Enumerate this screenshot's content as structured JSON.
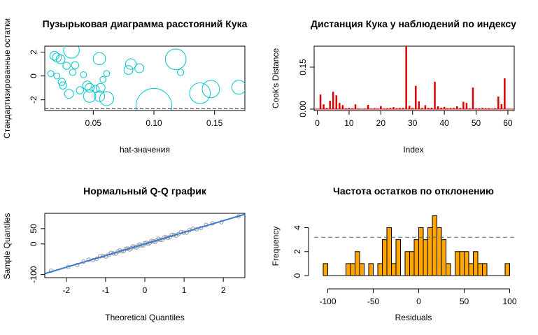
{
  "chart_data": [
    {
      "type": "scatter",
      "title": "Пузырьковая диаграмма расстояний Кука",
      "xlabel": "hat-значения",
      "ylabel": "Стандартизированные остатки",
      "xlim": [
        0.01,
        0.175
      ],
      "ylim": [
        -2.9,
        2.5
      ],
      "xticks": [
        0.05,
        0.1,
        0.15
      ],
      "xtick_labels": [
        "0.05",
        "0.10",
        "0.15"
      ],
      "yticks": [
        -2,
        0,
        2
      ],
      "ytick_labels": [
        "-2",
        "0",
        "2"
      ],
      "hline": -2.75,
      "color": "#00c5cd",
      "points": [
        {
          "x": 0.032,
          "y": 2.15,
          "r": 0.06
        },
        {
          "x": 0.018,
          "y": 1.7,
          "r": 0.02
        },
        {
          "x": 0.02,
          "y": 1.55,
          "r": 0.02
        },
        {
          "x": 0.023,
          "y": 1.4,
          "r": 0.02
        },
        {
          "x": 0.055,
          "y": 1.45,
          "r": 0.04
        },
        {
          "x": 0.118,
          "y": 1.4,
          "r": 0.09
        },
        {
          "x": 0.081,
          "y": 1.0,
          "r": 0.03
        },
        {
          "x": 0.088,
          "y": 0.65,
          "r": 0.02
        },
        {
          "x": 0.028,
          "y": 0.85,
          "r": 0.01
        },
        {
          "x": 0.035,
          "y": 0.9,
          "r": 0.01
        },
        {
          "x": 0.079,
          "y": 0.5,
          "r": 0.02
        },
        {
          "x": 0.122,
          "y": 0.3,
          "r": 0.005
        },
        {
          "x": 0.015,
          "y": 0.2,
          "r": 0.003
        },
        {
          "x": 0.02,
          "y": 0.0,
          "r": 0.003
        },
        {
          "x": 0.033,
          "y": 0.3,
          "r": 0.005
        },
        {
          "x": 0.024,
          "y": -0.5,
          "r": 0.01
        },
        {
          "x": 0.025,
          "y": -0.8,
          "r": 0.01
        },
        {
          "x": 0.03,
          "y": -1.5,
          "r": 0.02
        },
        {
          "x": 0.039,
          "y": -1.2,
          "r": 0.01
        },
        {
          "x": 0.045,
          "y": -0.8,
          "r": 0.02
        },
        {
          "x": 0.047,
          "y": -1.0,
          "r": 0.02
        },
        {
          "x": 0.052,
          "y": -1.1,
          "r": 0.01
        },
        {
          "x": 0.056,
          "y": -1.0,
          "r": 0.02
        },
        {
          "x": 0.047,
          "y": -1.7,
          "r": 0.04
        },
        {
          "x": 0.055,
          "y": -1.7,
          "r": 0.03
        },
        {
          "x": 0.061,
          "y": -1.9,
          "r": 0.05
        },
        {
          "x": 0.1,
          "y": -2.55,
          "r": 0.18
        },
        {
          "x": 0.138,
          "y": -1.45,
          "r": 0.09
        },
        {
          "x": 0.147,
          "y": -1.1,
          "r": 0.07
        },
        {
          "x": 0.17,
          "y": -0.95,
          "r": 0.05
        },
        {
          "x": 0.042,
          "y": 0.1,
          "r": 0.003
        },
        {
          "x": 0.061,
          "y": 0.2,
          "r": 0.003
        },
        {
          "x": 0.058,
          "y": -0.3,
          "r": 0.003
        }
      ]
    },
    {
      "type": "bar",
      "title": "Дистанция Кука у наблюдений по индексу",
      "xlabel": "Index",
      "ylabel": "Cook's Distance",
      "xlim": [
        -1,
        62
      ],
      "ylim": [
        -0.005,
        0.225
      ],
      "xticks": [
        0,
        10,
        20,
        30,
        40,
        50,
        60
      ],
      "yticks": [
        0.0,
        0.15
      ],
      "ytick_labels": [
        "0.00",
        "0.15"
      ],
      "hline": 0,
      "color": "#e00000",
      "values": [
        0.052,
        0.017,
        0.004,
        0.03,
        0.062,
        0.049,
        0.022,
        0.014,
        0.003,
        0.004,
        0.003,
        0.017,
        0.002,
        0.001,
        0.002,
        0.015,
        0.002,
        0.003,
        0.002,
        0.011,
        0.002,
        0.003,
        0.004,
        0.007,
        0.003,
        0.004,
        0.004,
        0.225,
        0.012,
        0.004,
        0.083,
        0.028,
        0.004,
        0.014,
        0.004,
        0.005,
        0.098,
        0.01,
        0.005,
        0.008,
        0.003,
        0.004,
        0.004,
        0.01,
        0.004,
        0.026,
        0.022,
        0.003,
        0.077,
        0.003,
        0.003,
        0.004,
        0.003,
        0.003,
        0.002,
        0.003,
        0.045,
        0.018,
        0.11
      ]
    },
    {
      "type": "scatter",
      "title": "Нормальный Q-Q график",
      "xlabel": "Theoretical Quantiles",
      "ylabel": "Sample Quantiles",
      "xlim": [
        -2.55,
        2.55
      ],
      "ylim": [
        -110,
        100
      ],
      "xticks": [
        -2,
        -1,
        0,
        1,
        2
      ],
      "yticks": [
        -100,
        0,
        50
      ],
      "line": {
        "slope": 38,
        "intercept": 0,
        "color": "#3a7bd5"
      },
      "point_color": "#9a9a9a",
      "n": 59
    },
    {
      "type": "bar",
      "title": "Частота остатков по отклонению",
      "xlabel": "Residuals",
      "ylabel": "Frequency",
      "xlim": [
        -115,
        105
      ],
      "ylim": [
        0,
        5.2
      ],
      "xticks": [
        -100,
        -50,
        0,
        50,
        100
      ],
      "yticks": [
        0,
        2,
        4
      ],
      "hline": 3.2,
      "bin_start": -105,
      "bin_width": 5,
      "color": "#ffa500",
      "values": [
        1,
        0,
        0,
        0,
        0,
        1,
        1,
        2,
        1,
        0,
        1,
        0,
        1,
        3,
        4,
        1,
        3,
        0,
        2,
        2,
        3,
        4,
        3,
        4,
        5,
        4,
        3,
        1,
        0,
        2,
        2,
        2,
        1,
        2,
        1,
        1,
        0,
        0,
        0,
        0,
        1
      ]
    }
  ]
}
